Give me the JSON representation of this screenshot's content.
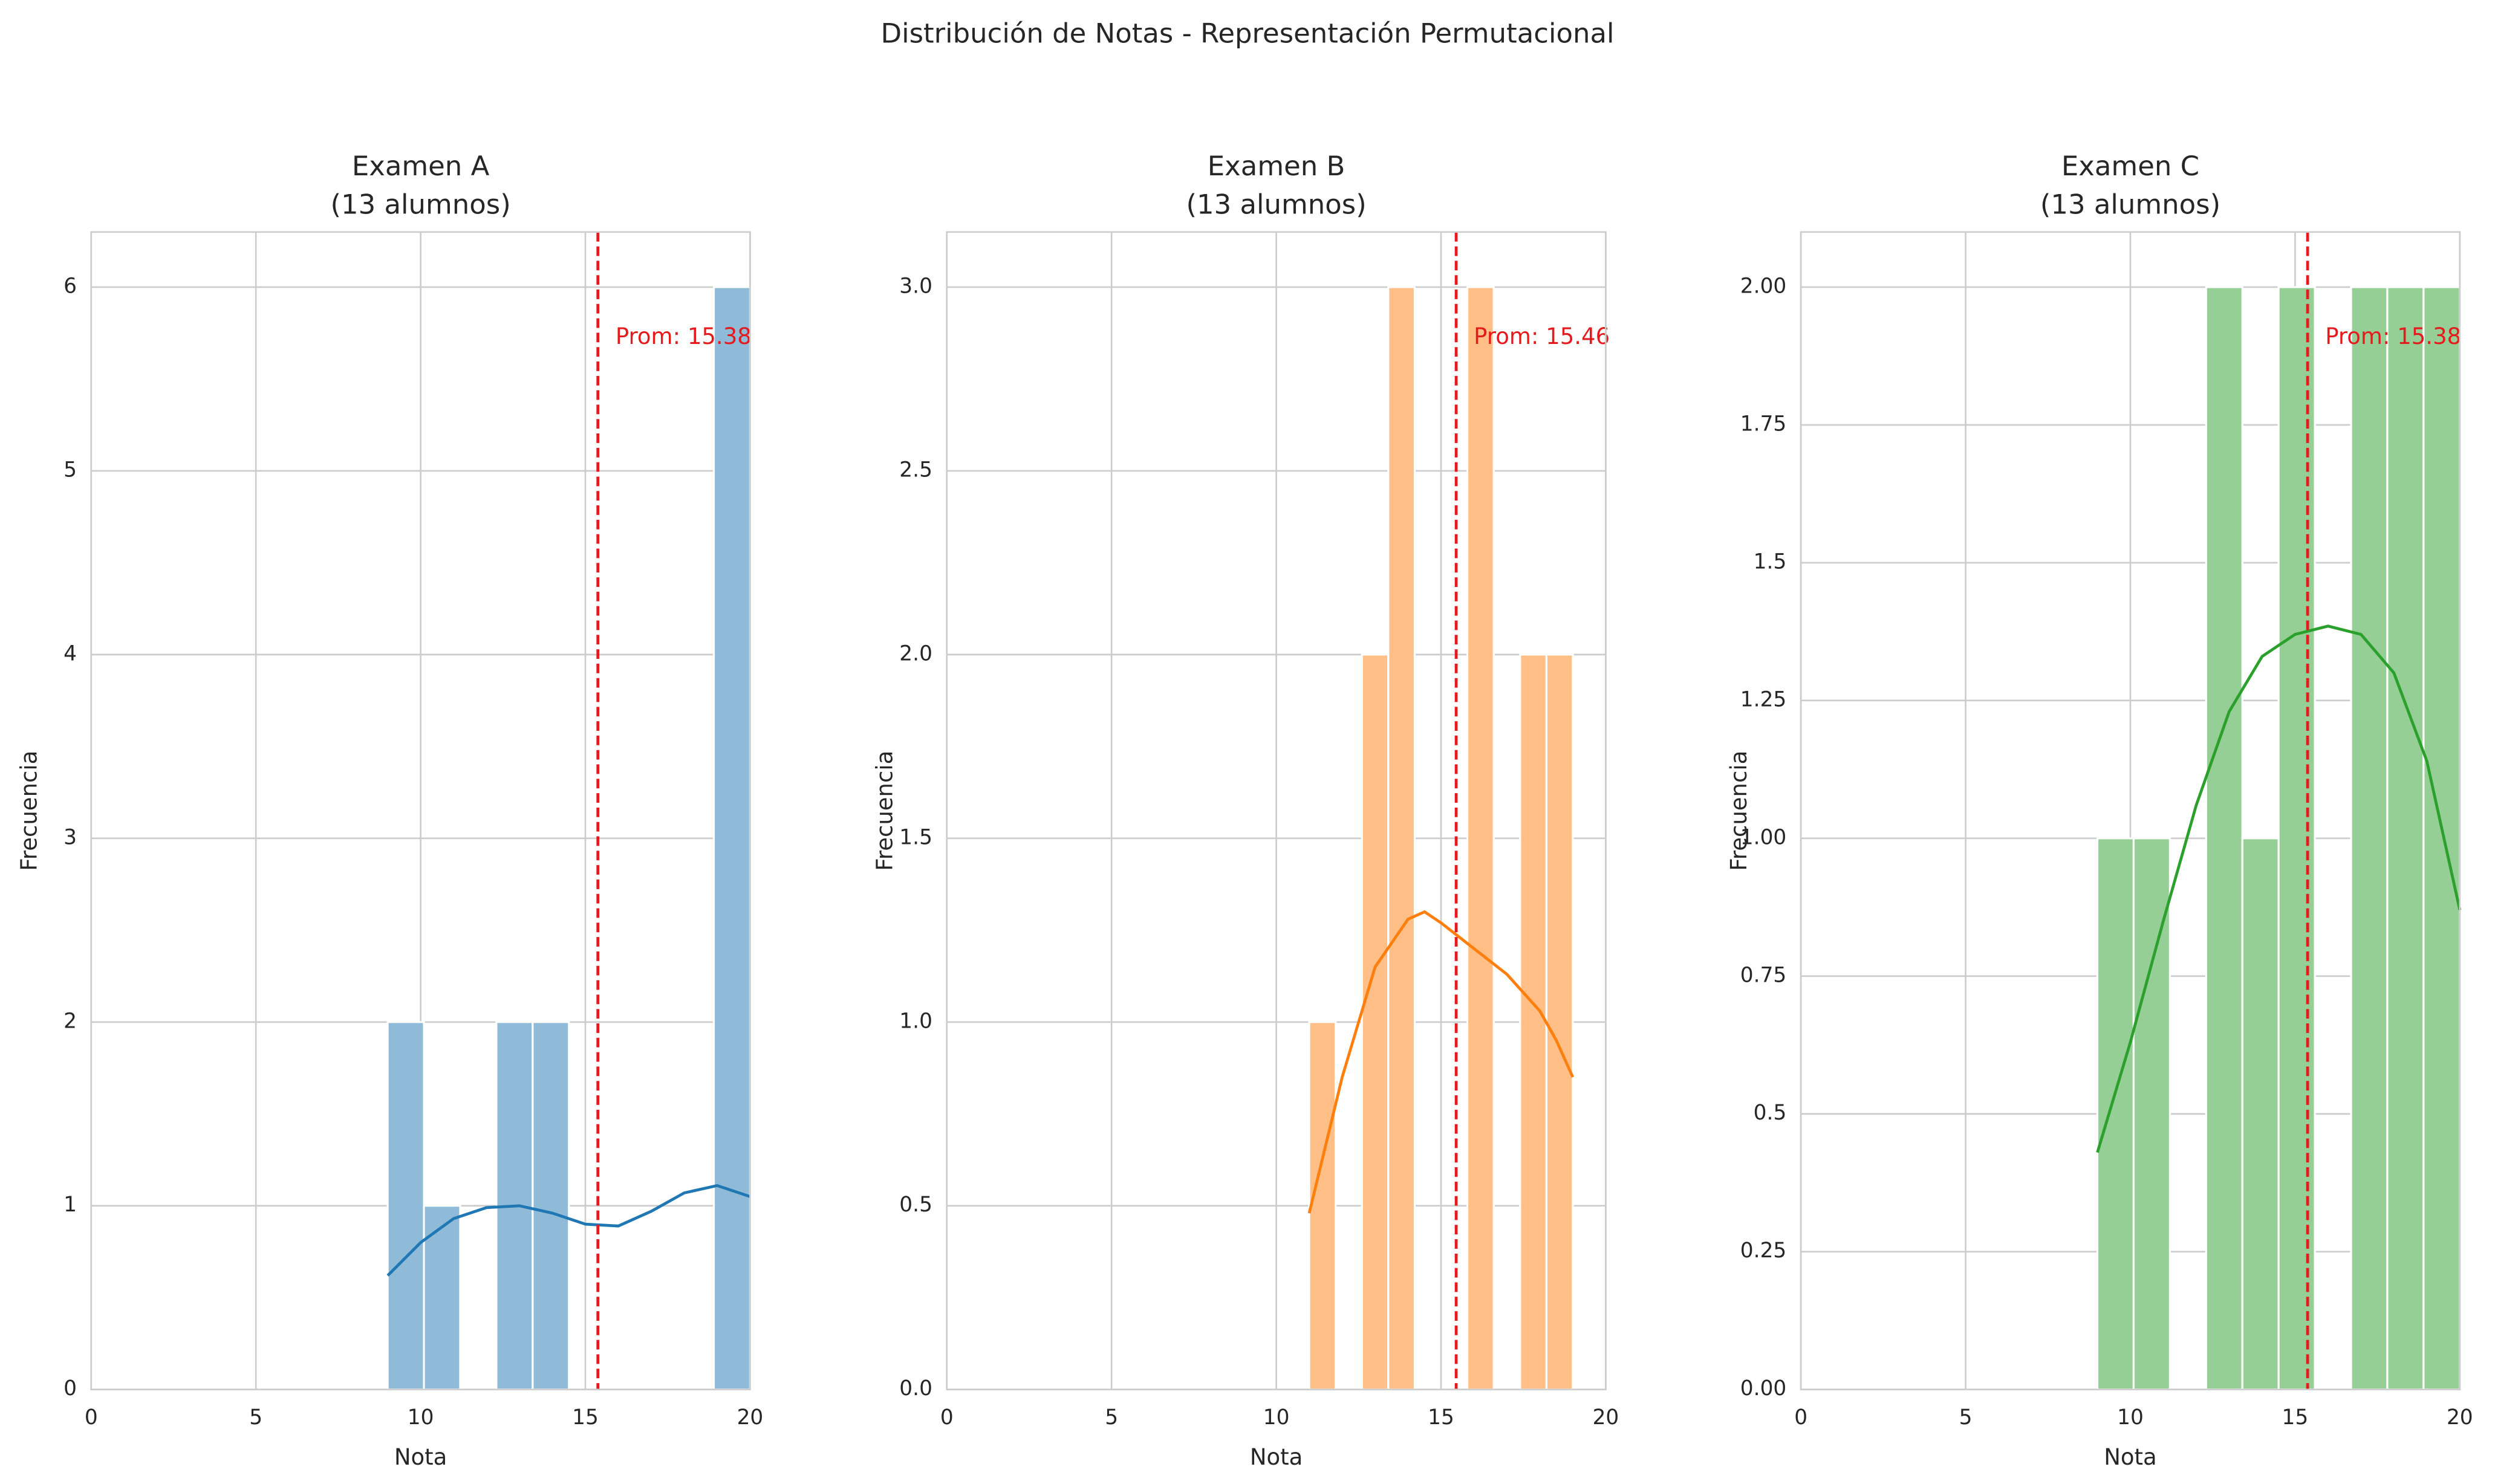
{
  "title": "Distribución de Notas - Representación Permutacional",
  "chart_data": [
    {
      "type": "histogram",
      "title": "Examen A\n(13 alumnos)",
      "x_label": "Nota",
      "y_label": "Frecuencia",
      "bins": [
        9,
        10.1,
        11.2,
        12.3,
        13.4,
        14.5,
        15.6,
        16.7,
        17.8,
        18.9,
        20
      ],
      "counts": [
        2,
        1,
        0,
        2,
        2,
        0,
        0,
        0,
        0,
        6
      ],
      "color": "#8fbbd9",
      "line_color": "#1f77b4",
      "kde_x": [
        9,
        10,
        11,
        12,
        13,
        14,
        15,
        16,
        17,
        18,
        19,
        20
      ],
      "kde_y": [
        0.62,
        0.8,
        0.93,
        0.99,
        1.0,
        0.96,
        0.9,
        0.89,
        0.97,
        1.07,
        1.11,
        1.05
      ],
      "mean": 15.38,
      "mean_label": "Prom: 15.38",
      "mean_color": "#e41a1c",
      "xlim": [
        0,
        20
      ],
      "xticks": [
        0,
        5,
        10,
        15,
        20
      ],
      "ylim": [
        0,
        6.3
      ],
      "yticks": [
        0,
        1,
        2,
        3,
        4,
        5,
        6
      ],
      "grid": true
    },
    {
      "type": "histogram",
      "title": "Examen B\n(13 alumnos)",
      "x_label": "Nota",
      "y_label": "Frecuencia",
      "bins": [
        11,
        11.8,
        12.6,
        13.4,
        14.2,
        15,
        15.8,
        16.6,
        17.4,
        18.2,
        19
      ],
      "counts": [
        1,
        0,
        2,
        3,
        0,
        0,
        3,
        0,
        2,
        2
      ],
      "color": "#ffbf86",
      "line_color": "#ff7f0e",
      "kde_x": [
        11,
        12,
        13,
        14,
        14.5,
        15,
        16,
        17,
        18,
        18.5,
        19
      ],
      "kde_y": [
        0.48,
        0.85,
        1.15,
        1.28,
        1.3,
        1.27,
        1.2,
        1.13,
        1.03,
        0.95,
        0.85
      ],
      "mean": 15.46,
      "mean_label": "Prom: 15.46",
      "mean_color": "#e41a1c",
      "xlim": [
        0,
        20
      ],
      "xticks": [
        0,
        5,
        10,
        15,
        20
      ],
      "ylim": [
        0,
        3.15
      ],
      "yticks": [
        {
          "value": 0,
          "label": "0.0"
        },
        0.5,
        {
          "value": 1,
          "label": "1.0"
        },
        1.5,
        {
          "value": 2,
          "label": "2.0"
        },
        2.5,
        {
          "value": 3,
          "label": "3.0"
        }
      ],
      "grid": true
    },
    {
      "type": "histogram",
      "title": "Examen C\n(13 alumnos)",
      "x_label": "Nota",
      "y_label": "Frecuencia",
      "bins": [
        9,
        10.1,
        11.2,
        12.3,
        13.4,
        14.5,
        15.6,
        16.7,
        17.8,
        18.9,
        20
      ],
      "counts": [
        1,
        1,
        0,
        2,
        1,
        2,
        0,
        2,
        2,
        2
      ],
      "color": "#95cf95",
      "line_color": "#2ca02c",
      "kde_x": [
        9,
        10,
        11,
        12,
        13,
        14,
        15,
        16,
        17,
        18,
        19,
        20
      ],
      "kde_y": [
        0.43,
        0.63,
        0.85,
        1.06,
        1.23,
        1.33,
        1.37,
        1.385,
        1.37,
        1.3,
        1.14,
        0.87
      ],
      "mean": 15.38,
      "mean_label": "Prom: 15.38",
      "mean_color": "#e41a1c",
      "xlim": [
        0,
        20
      ],
      "xticks": [
        0,
        5,
        10,
        15,
        20
      ],
      "ylim": [
        0,
        2.1
      ],
      "yticks": [
        {
          "value": 0,
          "label": "0.00"
        },
        0.25,
        0.5,
        0.75,
        {
          "value": 1,
          "label": "1.00"
        },
        1.25,
        1.5,
        1.75,
        {
          "value": 2,
          "label": "2.00"
        }
      ],
      "grid": true
    }
  ]
}
